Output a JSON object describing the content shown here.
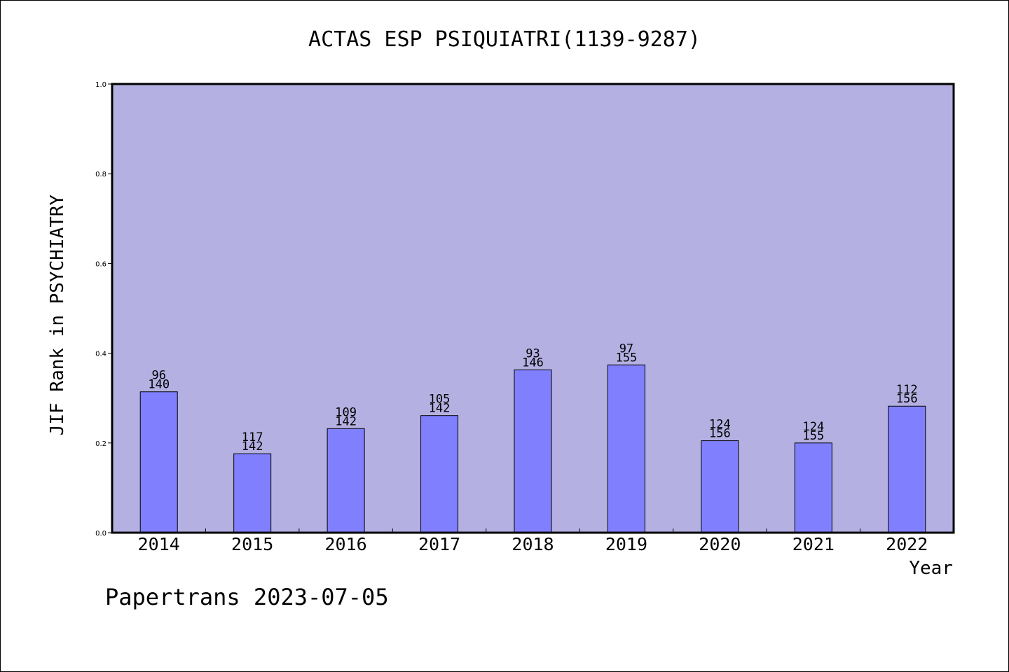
{
  "chart_data": {
    "type": "bar",
    "title": "ACTAS ESP PSIQUIATRI(1139-9287)",
    "ylabel": "JIF Rank in PSYCHIATRY",
    "xlabel": "Year",
    "footer": "Papertrans 2023-07-05",
    "ylim": [
      0,
      1.0
    ],
    "yticks": [
      "0.0",
      "0.2",
      "0.4",
      "0.6",
      "0.8",
      "1.0"
    ],
    "categories": [
      "2014",
      "2015",
      "2016",
      "2017",
      "2018",
      "2019",
      "2020",
      "2021",
      "2022"
    ],
    "values": [
      0.314,
      0.176,
      0.232,
      0.261,
      0.363,
      0.374,
      0.205,
      0.2,
      0.282
    ],
    "labels": [
      {
        "rank": "96",
        "total": "140"
      },
      {
        "rank": "117",
        "total": "142"
      },
      {
        "rank": "109",
        "total": "142"
      },
      {
        "rank": "105",
        "total": "142"
      },
      {
        "rank": "93",
        "total": "146"
      },
      {
        "rank": "97",
        "total": "155"
      },
      {
        "rank": "124",
        "total": "156"
      },
      {
        "rank": "124",
        "total": "155"
      },
      {
        "rank": "112",
        "total": "156"
      }
    ],
    "grid": false,
    "colors": {
      "plot_background": "#b5b0e2",
      "bar_fill": "#8080ff",
      "bar_stroke": "#000000",
      "axis": "#000000"
    }
  }
}
